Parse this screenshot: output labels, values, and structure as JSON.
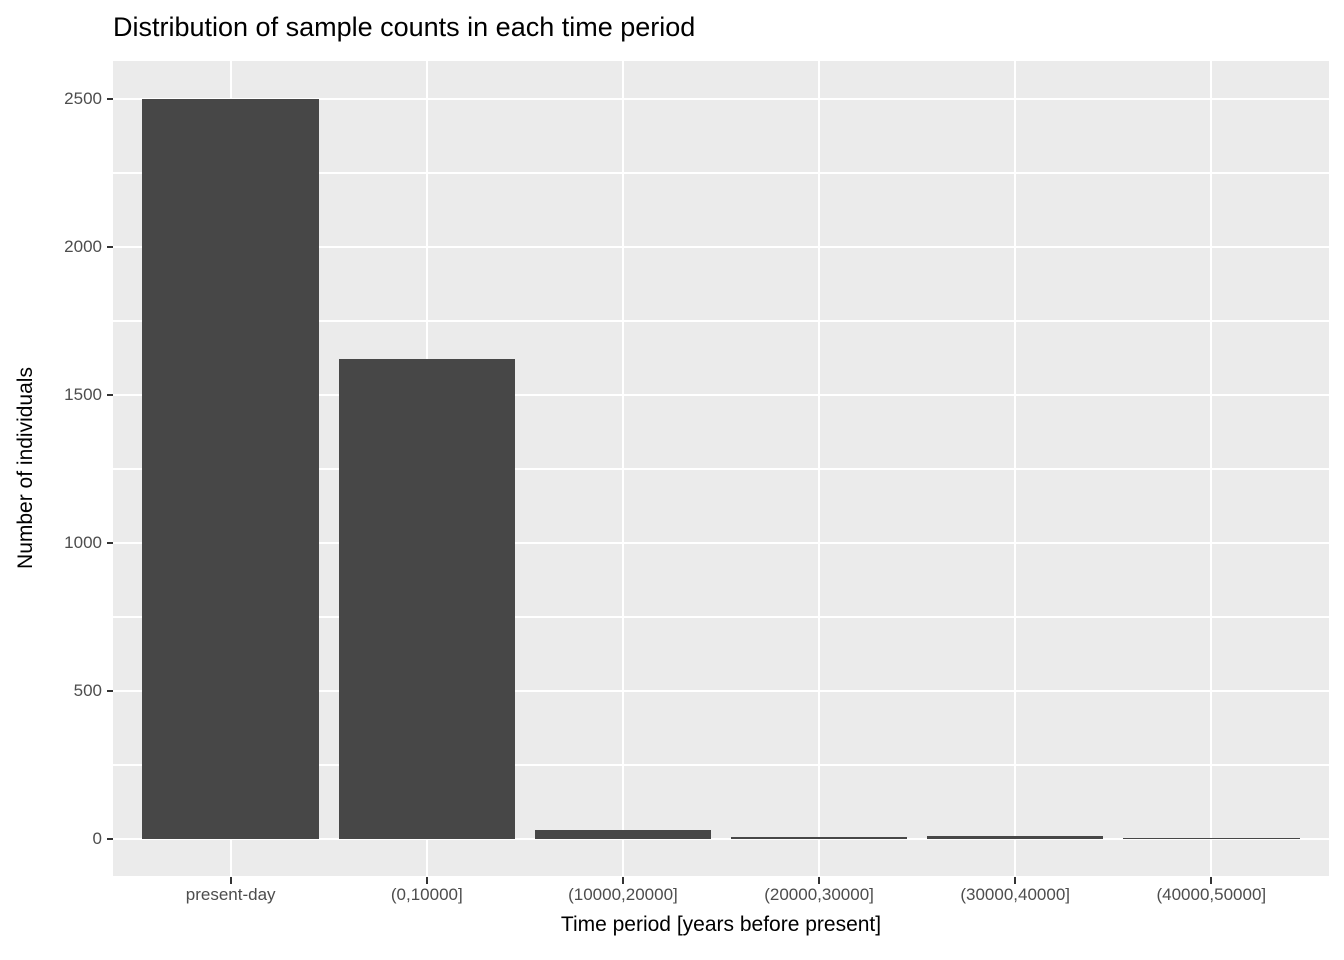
{
  "chart_data": {
    "type": "bar",
    "title": "Distribution of sample counts in each time period",
    "xlabel": "Time period [years before present]",
    "ylabel": "Number of individuals",
    "categories": [
      "present-day",
      "(0,10000]",
      "(10000,20000]",
      "(20000,30000]",
      "(30000,40000]",
      "(40000,50000]"
    ],
    "values": [
      2500,
      1620,
      30,
      7,
      10,
      2
    ],
    "yticks": [
      0,
      500,
      1000,
      1500,
      2000,
      2500
    ],
    "yminor_ticks": [
      250,
      750,
      1250,
      1750,
      2250
    ],
    "ylim": [
      -125,
      2628
    ],
    "bar_relative_width": 0.9,
    "x_expand": 0.6,
    "grid": true,
    "legend": "none",
    "colors": {
      "bar_fill": "#474747",
      "panel_background": "#EBEBEB",
      "grid_major": "#FFFFFF",
      "grid_minor": "#FFFFFF",
      "tick_label_text": "#4D4D4D",
      "tick_mark": "#333333",
      "title_text": "#000000",
      "axis_title_text": "#000000",
      "figure_background": "#FFFFFF"
    }
  }
}
